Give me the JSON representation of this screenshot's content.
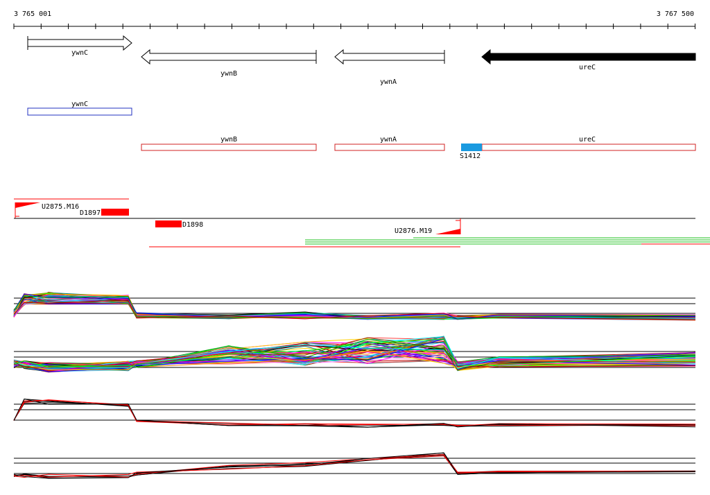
{
  "ruler": {
    "start_label": "3 765 001",
    "end_label": "3 767 500",
    "start": 3765001,
    "end": 3767500
  },
  "genes": [
    {
      "name": "ywnC",
      "start": 3765051,
      "end": 3765431,
      "strand": "+",
      "fill": "#ffffff"
    },
    {
      "name": "ywnB",
      "start": 3765466,
      "end": 3766106,
      "strand": "-",
      "fill": "#ffffff"
    },
    {
      "name": "ywnA",
      "start": 3766176,
      "end": 3766576,
      "strand": "-",
      "fill": "#ffffff"
    },
    {
      "name": "ureC",
      "start": 3766726,
      "end": 3767500,
      "strand": "-",
      "fill": "#000000"
    }
  ],
  "cds_boxes": [
    {
      "name": "ywnC",
      "color": "#2030c0"
    },
    {
      "name": "ywnB",
      "color": "#d02020"
    },
    {
      "name": "ywnA",
      "color": "#d02020"
    },
    {
      "name": "ureC",
      "color": "#d02020"
    }
  ],
  "features": {
    "S1412": "S1412",
    "U2875": "U2875.M16",
    "D1897": "D1897",
    "D1898": "D1898",
    "U2876": "U2876.M19"
  },
  "colors": {
    "accent_red": "#ff0000",
    "accent_blue": "#1a9ae0",
    "green": "#22c022",
    "black": "#000000"
  }
}
